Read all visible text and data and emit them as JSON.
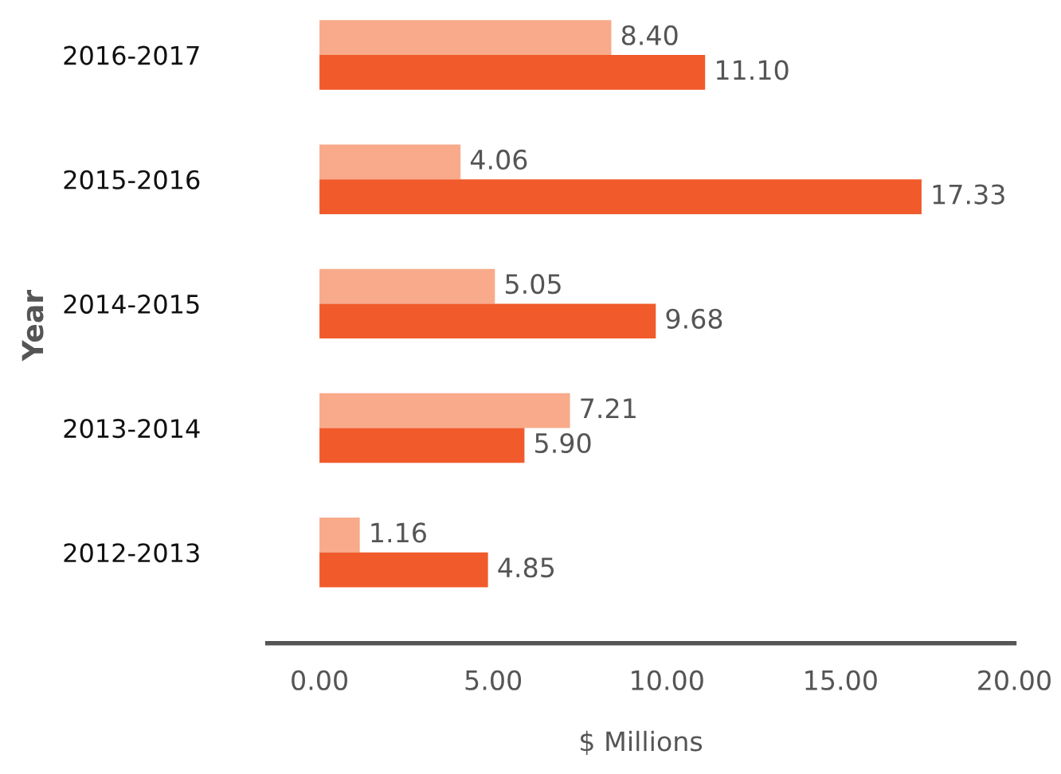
{
  "chart_data": {
    "type": "bar",
    "orientation": "horizontal",
    "ylabel": "Year",
    "xlabel": "$ Millions",
    "categories": [
      "2016-2017",
      "2015-2016",
      "2014-2015",
      "2013-2014",
      "2012-2013"
    ],
    "series": [
      {
        "color": "#f8aa8a",
        "values": [
          8.4,
          4.06,
          5.05,
          7.21,
          1.16
        ],
        "value_labels": [
          "8.40",
          "4.06",
          "5.05",
          "7.21",
          "1.16"
        ]
      },
      {
        "color": "#f15a2b",
        "values": [
          11.1,
          17.33,
          9.68,
          5.9,
          4.85
        ],
        "value_labels": [
          "11.10",
          "17.33",
          "9.68",
          "5.90",
          "4.85"
        ]
      }
    ],
    "xlim": [
      -1.5,
      20
    ],
    "xticks": [
      {
        "value": 0,
        "label": "0.00"
      },
      {
        "value": 5,
        "label": "5.00"
      },
      {
        "value": 10,
        "label": "10.00"
      },
      {
        "value": 15,
        "label": "15.00"
      },
      {
        "value": 20,
        "label": "20.00"
      }
    ],
    "grid": false,
    "legend": false
  }
}
